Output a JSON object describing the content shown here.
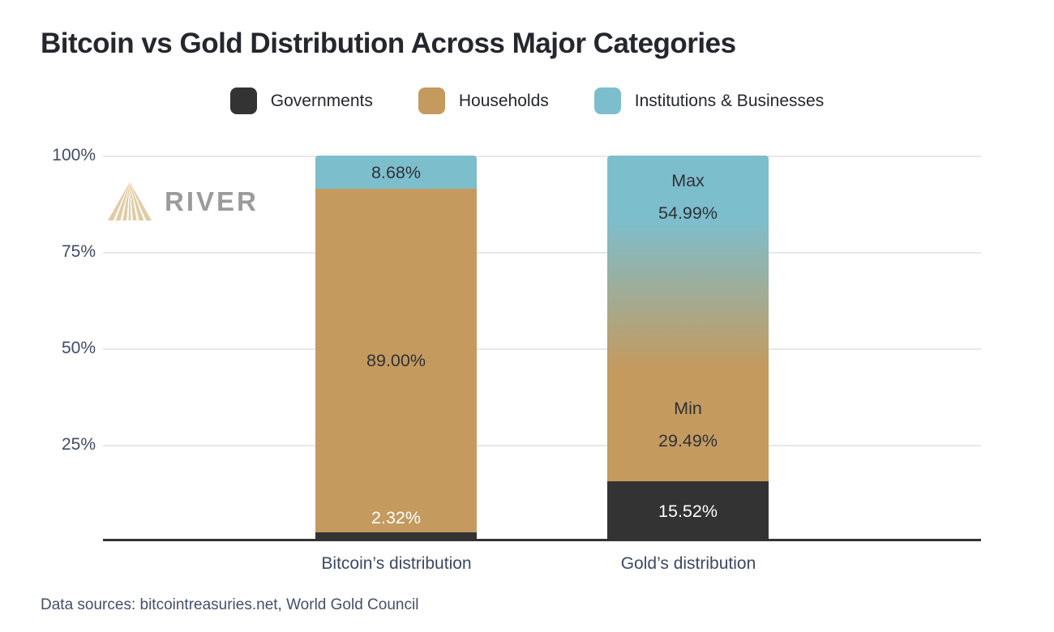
{
  "title": "Bitcoin vs Gold Distribution Across Major Categories",
  "legend": [
    {
      "label": "Governments",
      "color": "#333333"
    },
    {
      "label": "Households",
      "color": "#c49a5f"
    },
    {
      "label": "Institutions & Businesses",
      "color": "#7dbecd"
    }
  ],
  "watermark": {
    "brand": "RIVER"
  },
  "y_axis": {
    "ticks": [
      "100%",
      "75%",
      "50%",
      "25%"
    ]
  },
  "bars": {
    "bitcoin": {
      "x_label": "Bitcoin’s distribution",
      "institutions_label": "8.68%",
      "households_label": "89.00%",
      "governments_label": "2.32%"
    },
    "gold": {
      "x_label": "Gold’s distribution",
      "max_title": "Max",
      "max_value": "54.99%",
      "min_title": "Min",
      "min_value": "29.49%",
      "governments_label": "15.52%"
    }
  },
  "footer": "Data sources: bitcointreasuries.net, World Gold Council",
  "colors": {
    "governments": "#333333",
    "households": "#c49a5f",
    "institutions": "#7dbecd",
    "gold_gradient_top": "#7dbecd",
    "gold_gradient_bottom": "#c49a5f",
    "title_text": "#26262e",
    "axis_text": "#414b66",
    "gridline": "#e8e8e8",
    "watermark_text": "#9b9b9b",
    "watermark_mark": "#e2cba4"
  },
  "chart_data": {
    "type": "bar",
    "subtype": "stacked-percentage",
    "title": "Bitcoin vs Gold Distribution Across Major Categories",
    "categories": [
      "Bitcoin’s distribution",
      "Gold’s distribution"
    ],
    "series": [
      {
        "name": "Governments",
        "color": "#333333",
        "values": [
          2.32,
          15.52
        ]
      },
      {
        "name": "Households",
        "color": "#c49a5f",
        "values": [
          89.0,
          29.49
        ],
        "gold_note": "Min"
      },
      {
        "name": "Institutions & Businesses",
        "color": "#7dbecd",
        "values": [
          8.68,
          54.99
        ],
        "gold_note": "Max"
      }
    ],
    "annotations": [
      {
        "bar": "Gold’s distribution",
        "segment": "Institutions & Businesses",
        "text": "Max 54.99%"
      },
      {
        "bar": "Gold’s distribution",
        "segment": "Households",
        "text": "Min 29.49%"
      }
    ],
    "xlabel": "",
    "ylabel": "",
    "ylim": [
      0,
      100
    ],
    "y_tick_labels": [
      "25%",
      "50%",
      "75%",
      "100%"
    ],
    "grid": true,
    "legend_position": "top",
    "data_sources": "bitcointreasuries.net, World Gold Council"
  }
}
